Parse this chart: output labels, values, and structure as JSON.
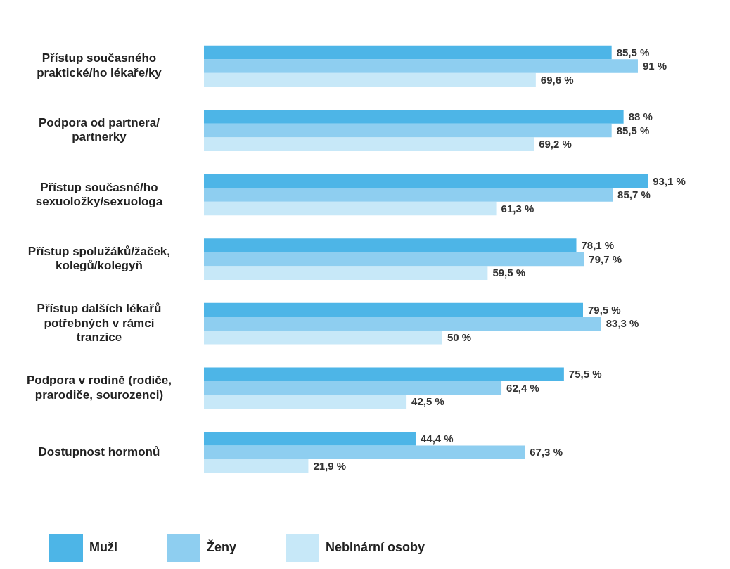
{
  "chart_data": {
    "type": "bar",
    "orientation": "horizontal",
    "categories": [
      "Přístup současného praktické/ho lékaře/ky",
      "Podpora od partnera/ partnerky",
      "Přístup současné/ho sexuoložky/sexuologa",
      "Přístup spolužáků/žaček, kolegů/kolegyň",
      "Přístup dalších lékařů potřebných v rámci tranzice",
      "Podpora v rodině (rodiče, prarodiče, sourozenci)",
      "Dostupnost hormonů"
    ],
    "legend": "bottom",
    "series": [
      {
        "name": "Muži",
        "color": "#4db5e7",
        "values": [
          85.5,
          88,
          93.1,
          78.1,
          79.5,
          75.5,
          44.4
        ],
        "value_labels": [
          "85,5 %",
          "88 %",
          "93,1 %",
          "78,1 %",
          "79,5 %",
          "75,5 %",
          "44,4 %"
        ]
      },
      {
        "name": "Ženy",
        "color": "#8ecef0",
        "values": [
          91,
          85.5,
          85.7,
          79.7,
          83.3,
          62.4,
          67.3
        ],
        "value_labels": [
          "91 %",
          "85,5 %",
          "85,7 %",
          "79,7 %",
          "83,3 %",
          "62,4 %",
          "67,3 %"
        ]
      },
      {
        "name": "Nebinární osoby",
        "color": "#c7e8f8",
        "values": [
          69.6,
          69.2,
          61.3,
          59.5,
          50,
          42.5,
          21.9
        ],
        "value_labels": [
          "69,6 %",
          "69,2 %",
          "61,3 %",
          "59,5 %",
          "50 %",
          "42,5 %",
          "21,9 %"
        ]
      }
    ]
  }
}
